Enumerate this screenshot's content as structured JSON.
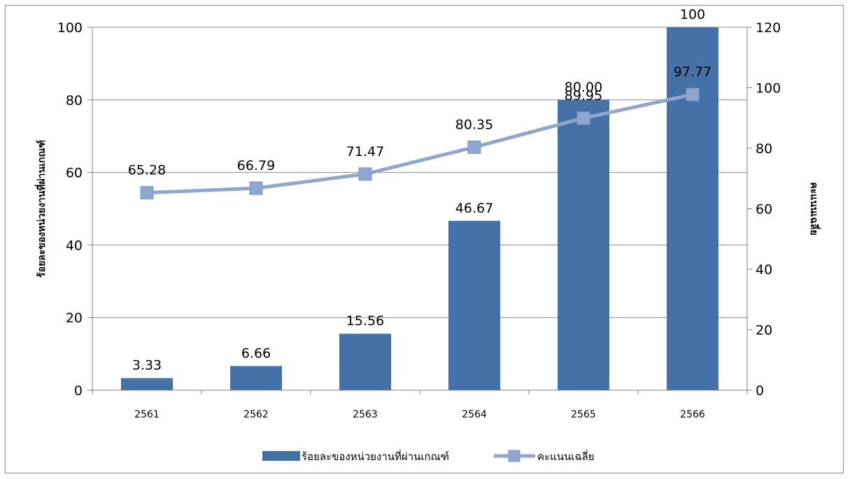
{
  "chart_data": {
    "type": "bar+line",
    "categories": [
      "2561",
      "2562",
      "2563",
      "2564",
      "2565",
      "2566"
    ],
    "series": [
      {
        "name": "ร้อยละของหน่วยงานที่ผ่านเกณฑ์",
        "kind": "bar",
        "axis": "left",
        "color": "#4472a8",
        "values": [
          3.33,
          6.66,
          15.56,
          46.67,
          80.0,
          100
        ],
        "labels": [
          "3.33",
          "6.66",
          "15.56",
          "46.67",
          "80.00",
          "100"
        ]
      },
      {
        "name": "คะแนนเฉลี่ย",
        "kind": "line",
        "axis": "right",
        "color": "#8fa7cf",
        "values": [
          65.28,
          66.79,
          71.47,
          80.35,
          89.95,
          97.77
        ],
        "labels": [
          "65.28",
          "66.79",
          "71.47",
          "80.35",
          "89.95",
          "97.77"
        ]
      }
    ],
    "y_left": {
      "label": "ร้อยละของหน่วยงานที่ผ่านเกณฑ์",
      "range": [
        0,
        100
      ],
      "ticks": [
        0,
        20,
        40,
        60,
        80,
        100
      ]
    },
    "y_right": {
      "label": "คะแนนเฉลี่ย",
      "range": [
        0,
        120
      ],
      "ticks": [
        0,
        20,
        40,
        60,
        80,
        100,
        120
      ]
    },
    "grid": true,
    "legend_position": "bottom"
  }
}
